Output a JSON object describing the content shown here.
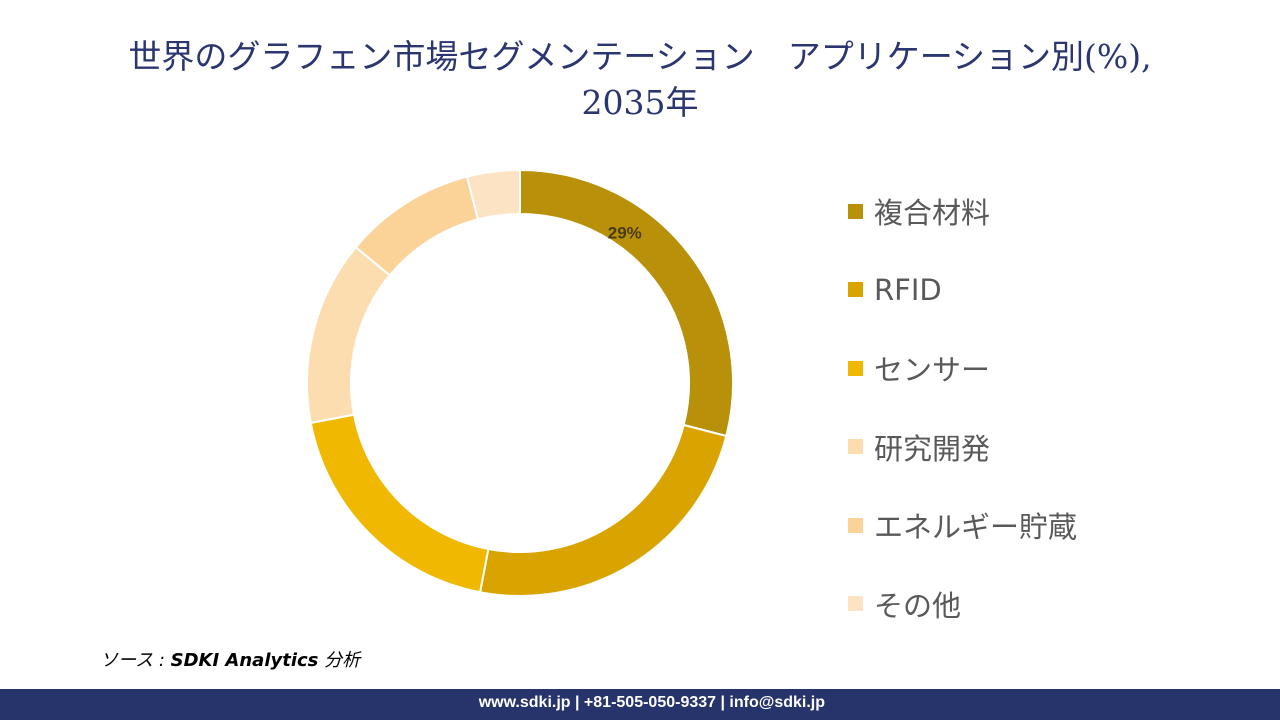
{
  "chart_data": {
    "type": "pie",
    "variant": "donut",
    "title": "世界のグラフェン市場セグメンテーション　アプリケーション別(%), 2035年",
    "title_lines": [
      "世界のグラフェン市場セグメンテーション　アプリケーション別(%),",
      "2035年"
    ],
    "categories": [
      "複合材料",
      "RFID",
      "センサー",
      "研究開発",
      "エネルギー貯蔵",
      "その他"
    ],
    "values": [
      29,
      24,
      19,
      14,
      10,
      4
    ],
    "data_labels": [
      "29%",
      "",
      "",
      "",
      "",
      ""
    ],
    "colors": [
      "#B8900A",
      "#D9A300",
      "#F0B800",
      "#FBDDB0",
      "#FBD398",
      "#FCE3C4"
    ],
    "legend_position": "right"
  },
  "source": {
    "prefix": "ソース : ",
    "name": "SDKI Analytics",
    "suffix": " 分析"
  },
  "footer": {
    "text": "www.sdki.jp | +81-505-050-9337 | info@sdki.jp"
  }
}
